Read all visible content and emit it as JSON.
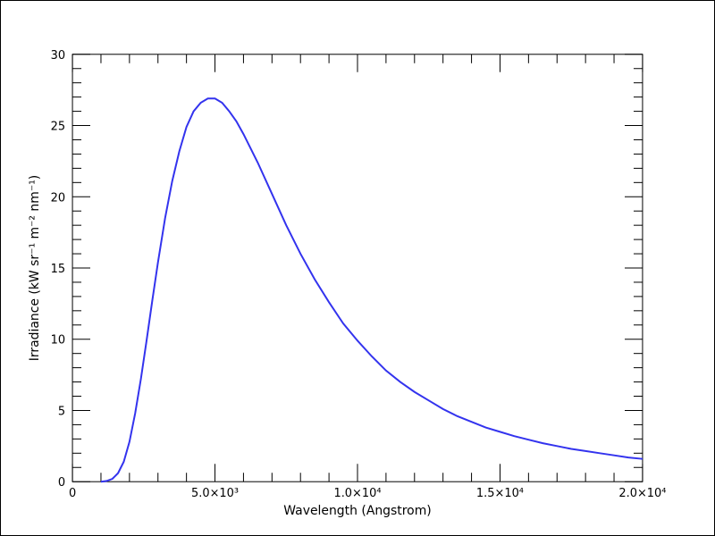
{
  "chart_data": {
    "type": "line",
    "xlabel": "Wavelength (Angstrom)",
    "ylabel": "Irradiance (kW sr⁻¹ m⁻² nm⁻¹)",
    "xlim": [
      0,
      20000
    ],
    "ylim": [
      0,
      30
    ],
    "grid": false,
    "line_color": "#3333ee",
    "x_tick_labels": [
      {
        "value": 0,
        "text": "0"
      },
      {
        "value": 5000,
        "text": "5.0×10³"
      },
      {
        "value": 10000,
        "text": "1.0×10⁴"
      },
      {
        "value": 15000,
        "text": "1.5×10⁴"
      },
      {
        "value": 20000,
        "text": "2.0×10⁴"
      }
    ],
    "y_tick_labels": [
      {
        "value": 0,
        "text": "0"
      },
      {
        "value": 5,
        "text": "5"
      },
      {
        "value": 10,
        "text": "10"
      },
      {
        "value": 15,
        "text": "15"
      },
      {
        "value": 20,
        "text": "20"
      },
      {
        "value": 25,
        "text": "25"
      },
      {
        "value": 30,
        "text": "30"
      }
    ],
    "x_minor_step": 1000,
    "y_minor_step": 1,
    "series": [
      {
        "x": [
          1000,
          1200,
          1400,
          1600,
          1800,
          2000,
          2200,
          2400,
          2600,
          2800,
          3000,
          3250,
          3500,
          3750,
          4000,
          4250,
          4500,
          4750,
          5000,
          5250,
          5500,
          5750,
          6000,
          6500,
          7000,
          7500,
          8000,
          8500,
          9000,
          9500,
          10000,
          10500,
          11000,
          11500,
          12000,
          12500,
          13000,
          13500,
          14000,
          14500,
          15000,
          15500,
          16000,
          16500,
          17000,
          17500,
          18000,
          18500,
          19000,
          19500,
          20000
        ],
        "y": [
          0.0,
          0.05,
          0.2,
          0.6,
          1.4,
          2.8,
          4.8,
          7.2,
          9.9,
          12.7,
          15.4,
          18.5,
          21.1,
          23.2,
          24.9,
          26.0,
          26.6,
          26.9,
          26.9,
          26.6,
          26.0,
          25.3,
          24.4,
          22.4,
          20.2,
          18.0,
          16.0,
          14.2,
          12.6,
          11.1,
          9.9,
          8.8,
          7.8,
          7.0,
          6.3,
          5.7,
          5.1,
          4.6,
          4.2,
          3.8,
          3.5,
          3.2,
          2.95,
          2.7,
          2.5,
          2.3,
          2.15,
          2.0,
          1.85,
          1.7,
          1.6
        ]
      }
    ]
  }
}
